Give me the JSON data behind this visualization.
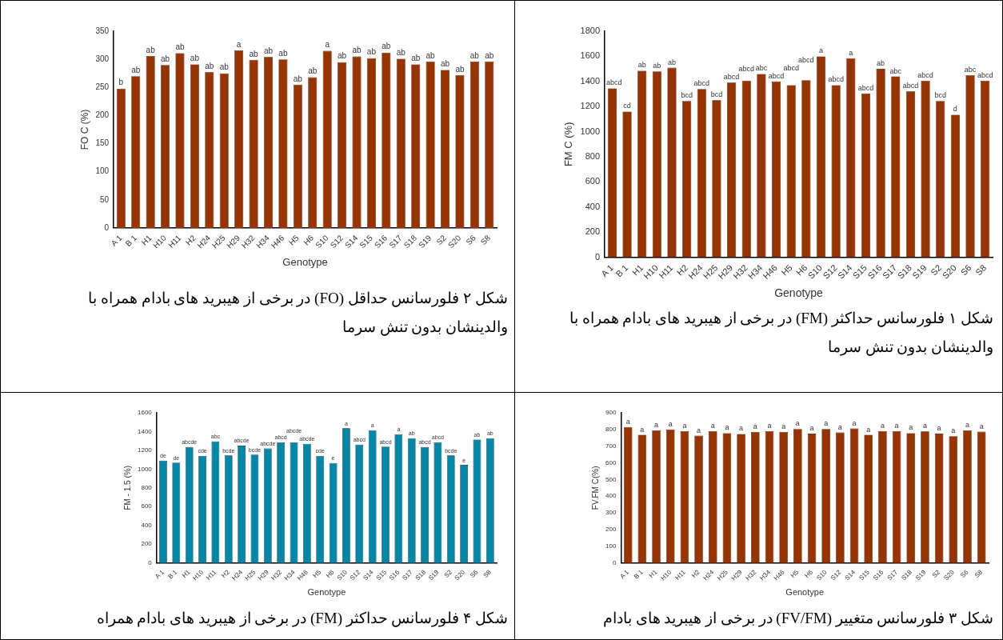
{
  "chart_data": [
    {
      "type": "bar",
      "xlabel": "Genotype",
      "ylabel": "FM C (%)",
      "color": "#993300",
      "grid": false,
      "categories": [
        "A 1",
        "B 1",
        "H1",
        "H10",
        "H11",
        "H2",
        "H24",
        "H25",
        "H29",
        "H32",
        "H34",
        "H46",
        "H5",
        "H6",
        "S10",
        "S12",
        "S14",
        "S15",
        "S16",
        "S17",
        "S18",
        "S19",
        "S2",
        "S20",
        "S6",
        "S8"
      ],
      "values": [
        1345,
        1160,
        1485,
        1480,
        1510,
        1245,
        1340,
        1250,
        1390,
        1405,
        1460,
        1400,
        1370,
        1410,
        1600,
        1370,
        1585,
        1305,
        1500,
        1440,
        1320,
        1405,
        1245,
        1135,
        1450,
        1405
      ],
      "value_labels": [
        "abcd",
        "cd",
        "ab",
        "ab",
        "ab",
        "bcd",
        "abcd",
        "bcd",
        "abcd",
        "abcd",
        "abc",
        "abcd",
        "abcd",
        "abcd",
        "a",
        "abcd",
        "a",
        "abcd",
        "ab",
        "abc",
        "abcd",
        "abcd",
        "bcd",
        "d",
        "abc",
        "abcd"
      ],
      "ylim": [
        0,
        1800
      ],
      "yticks": [
        0,
        200,
        400,
        600,
        800,
        1000,
        1200,
        1400,
        1600,
        1800
      ],
      "annotations": [
        "شکل ۱ فلورسانس حداکثر (FM) در برخی از هیبرید های بادام همراه با والدینشان بدون تنش سرما"
      ]
    },
    {
      "type": "bar",
      "xlabel": "Genotype",
      "ylabel": "FO C (%)",
      "color": "#993300",
      "grid": false,
      "categories": [
        "A 1",
        "B 1",
        "H1",
        "H10",
        "H11",
        "H2",
        "H24",
        "H25",
        "H29",
        "H32",
        "H34",
        "H46",
        "H5",
        "H6",
        "S10",
        "S12",
        "S14",
        "S15",
        "S16",
        "S17",
        "S18",
        "S19",
        "S2",
        "S20",
        "S6",
        "S8"
      ],
      "values": [
        248,
        270,
        306,
        290,
        311,
        291,
        277,
        275,
        316,
        299,
        304,
        300,
        255,
        268,
        315,
        295,
        305,
        302,
        312,
        301,
        291,
        296,
        281,
        272,
        296,
        296
      ],
      "value_labels": [
        "b",
        "ab",
        "ab",
        "ab",
        "ab",
        "ab",
        "ab",
        "ab",
        "a",
        "ab",
        "ab",
        "ab",
        "ab",
        "ab",
        "a",
        "ab",
        "ab",
        "ab",
        "ab",
        "ab",
        "ab",
        "ab",
        "ab",
        "ab",
        "ab",
        "ab"
      ],
      "ylim": [
        0,
        350
      ],
      "yticks": [
        0,
        50,
        100,
        150,
        200,
        250,
        300,
        350
      ],
      "annotations": [
        "شکل ۲ فلورسانس حداقل (FO) در برخی از هیبرید های بادام همراه با والدینشان بدون تنش سرما"
      ]
    },
    {
      "type": "bar",
      "xlabel": "Genotype",
      "ylabel": "FV.FM C(%)",
      "color": "#993300",
      "grid": false,
      "categories": [
        "A 1",
        "B 1",
        "H1",
        "H10",
        "H11",
        "H2",
        "H24",
        "H25",
        "H29",
        "H32",
        "H34",
        "H46",
        "H5",
        "H6",
        "S10",
        "S12",
        "S14",
        "S15",
        "S16",
        "S17",
        "S18",
        "S19",
        "S2",
        "S20",
        "S6",
        "S8"
      ],
      "values": [
        815,
        768,
        795,
        800,
        790,
        763,
        790,
        778,
        773,
        785,
        790,
        785,
        803,
        775,
        803,
        782,
        806,
        768,
        790,
        790,
        778,
        788,
        775,
        760,
        795,
        787
      ],
      "value_labels": [
        "a",
        "a",
        "a",
        "a",
        "a",
        "a",
        "a",
        "a",
        "a",
        "a",
        "a",
        "a",
        "a",
        "a",
        "a",
        "a",
        "a",
        "a",
        "a",
        "a",
        "a",
        "a",
        "a",
        "a",
        "a",
        "a"
      ],
      "ylim": [
        0,
        900
      ],
      "yticks": [
        0,
        100,
        200,
        300,
        400,
        500,
        600,
        700,
        800,
        900
      ],
      "annotations": [
        "شکل ۳ فلورسانس متغییر (FV/FM) در برخی از هیبرید های بادام"
      ]
    },
    {
      "type": "bar",
      "xlabel": "Genotype",
      "ylabel": "FM - 1.5 (%)",
      "color": "#0088aa",
      "grid": false,
      "categories": [
        "A 1",
        "B 1",
        "H1",
        "H10",
        "H11",
        "H2",
        "H24",
        "H25",
        "H29",
        "H32",
        "H34",
        "H46",
        "H5",
        "H6",
        "S10",
        "S12",
        "S14",
        "S15",
        "S16",
        "S17",
        "S18",
        "S19",
        "S2",
        "S20",
        "S6",
        "S8"
      ],
      "values": [
        1090,
        1070,
        1235,
        1140,
        1295,
        1145,
        1250,
        1155,
        1220,
        1285,
        1285,
        1270,
        1140,
        1065,
        1435,
        1260,
        1415,
        1240,
        1370,
        1330,
        1235,
        1285,
        1145,
        1045,
        1315,
        1330
      ],
      "value_labels": [
        "de",
        "de",
        "abcde",
        "cde",
        "abc",
        "bcde",
        "abcde",
        "bcde",
        "abcde",
        "abcd",
        "abcde",
        "abcde",
        "cde",
        "e",
        "a",
        "abcd",
        "a",
        "abcd",
        "a",
        "ab",
        "abcd",
        "abcd",
        "bcde",
        "e",
        "ab",
        "ab"
      ],
      "ylim": [
        0,
        1600
      ],
      "yticks": [
        0,
        200,
        400,
        600,
        800,
        1000,
        1200,
        1400,
        1600
      ],
      "annotations": [
        "شکل ۴ فلورسانس حداکثر (FM) در برخی از هیبرید های بادام همراه"
      ]
    }
  ]
}
